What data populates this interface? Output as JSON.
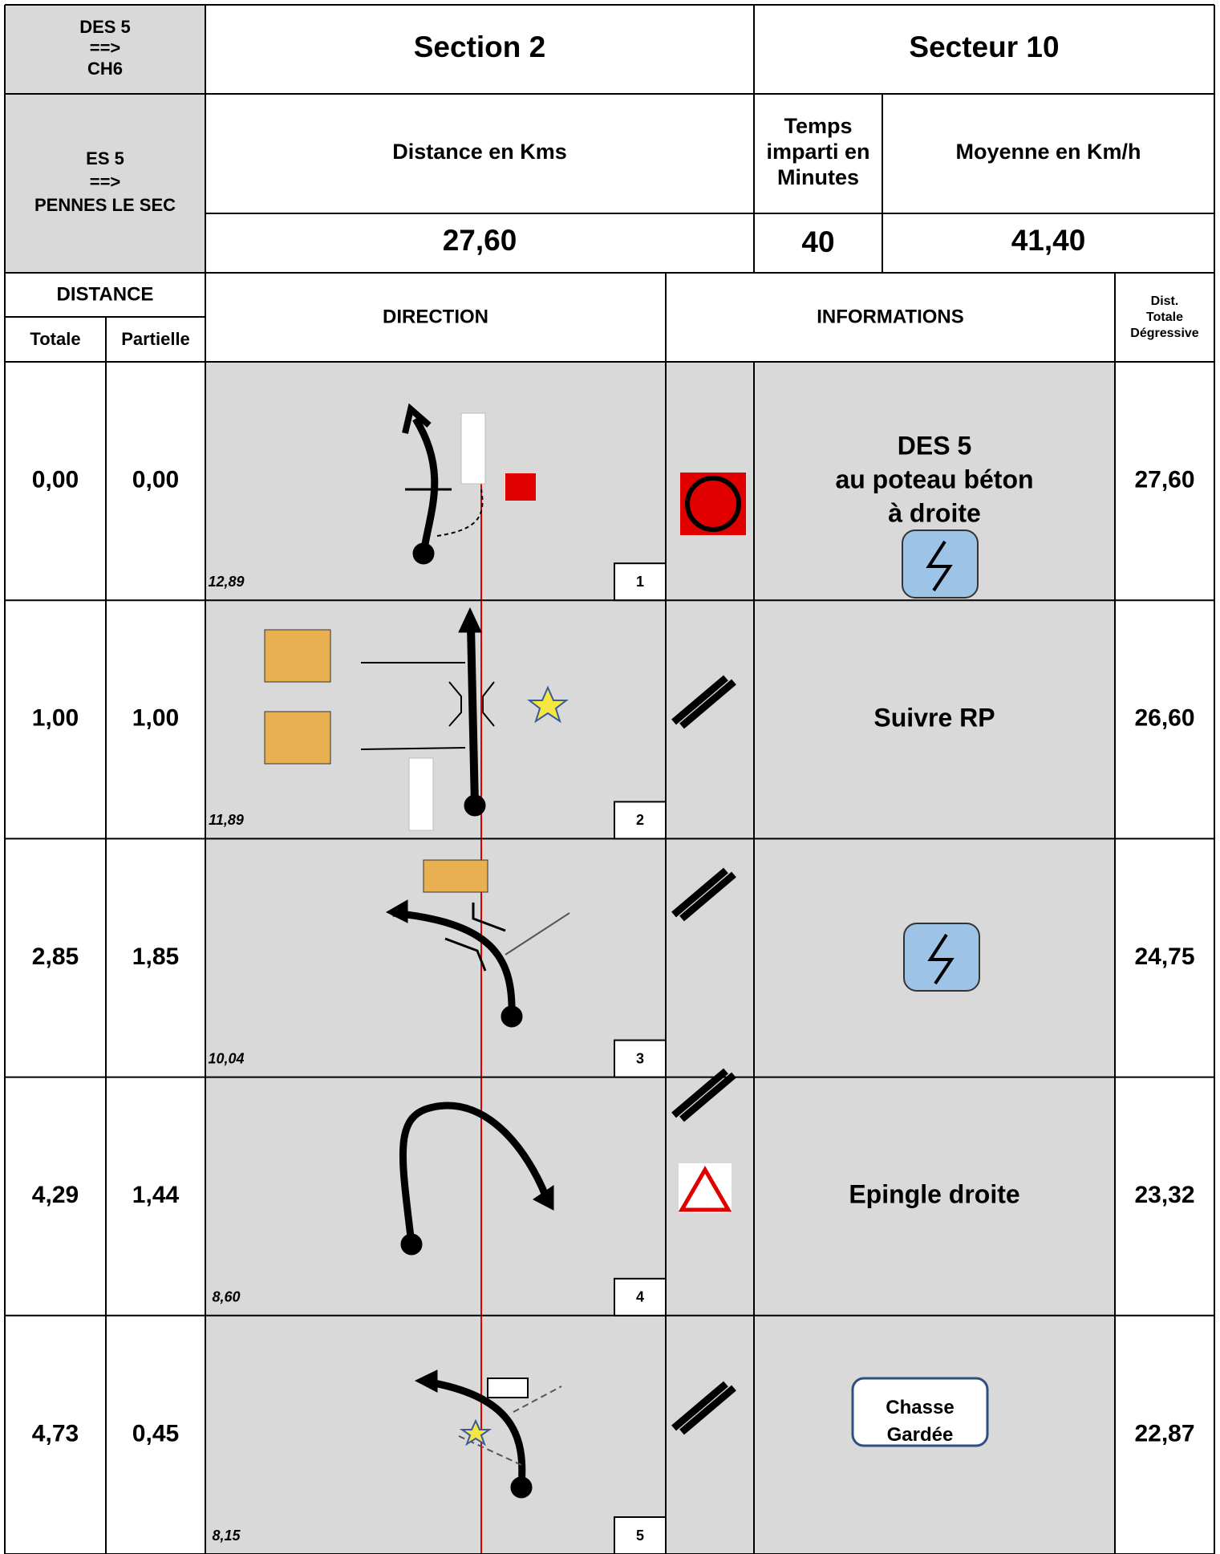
{
  "header": {
    "stage": [
      "DES 5",
      "==>",
      "CH6"
    ],
    "section": "Section 2",
    "secteur": "Secteur 10",
    "es": [
      "ES 5",
      "==>",
      "PENNES LE SEC"
    ],
    "distance_label": "Distance en Kms",
    "temps_label": [
      "Temps",
      "imparti en",
      "Minutes"
    ],
    "moyenne_label": "Moyenne en Km/h",
    "distance": "27,60",
    "temps": "40",
    "moyenne": "41,40"
  },
  "columns": {
    "distance": "DISTANCE",
    "totale": "Totale",
    "partielle": "Partielle",
    "direction": "DIRECTION",
    "informations": "INFORMATIONS",
    "degressive": [
      "Dist.",
      "Totale",
      "Dégressive"
    ]
  },
  "rows": [
    {
      "totale": "0,00",
      "partielle": "0,00",
      "sub": "12,89",
      "number": "1",
      "info": [
        "DES 5",
        "au poteau béton",
        "à droite"
      ],
      "degressive": "27,60"
    },
    {
      "totale": "1,00",
      "partielle": "1,00",
      "sub": "11,89",
      "number": "2",
      "info": [
        "Suivre RP"
      ],
      "degressive": "26,60"
    },
    {
      "totale": "2,85",
      "partielle": "1,85",
      "sub": "10,04",
      "number": "3",
      "info": [],
      "degressive": "24,75"
    },
    {
      "totale": "4,29",
      "partielle": "1,44",
      "sub": "8,60",
      "number": "4",
      "info": [
        "Epingle droite"
      ],
      "degressive": "23,32"
    },
    {
      "totale": "4,73",
      "partielle": "0,45",
      "sub": "8,15",
      "number": "5",
      "info": [
        "Chasse",
        "Gardée"
      ],
      "degressive": "22,87"
    }
  ]
}
